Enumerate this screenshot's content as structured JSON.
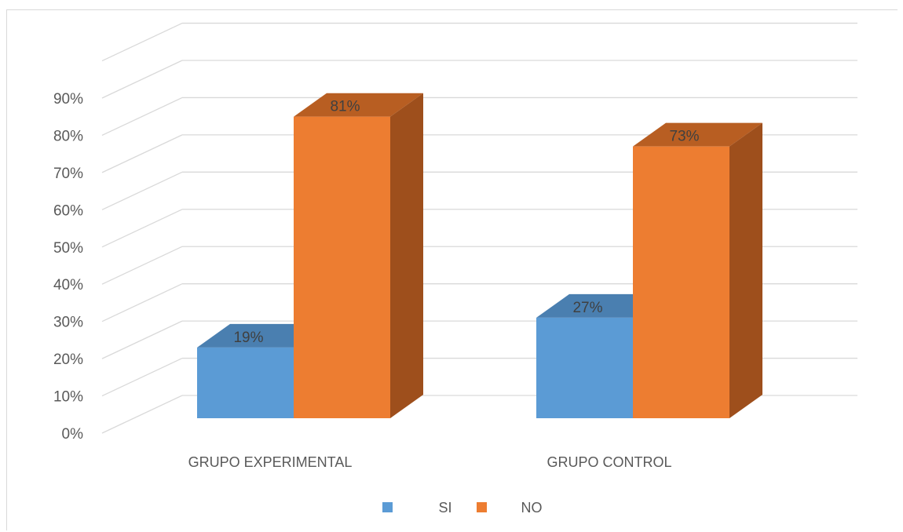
{
  "chart_data": {
    "type": "bar",
    "categories": [
      "GRUPO EXPERIMENTAL",
      "GRUPO CONTROL"
    ],
    "series": [
      {
        "name": "SI",
        "values": [
          19,
          27
        ],
        "labels": [
          "19%",
          "27%"
        ],
        "color": "#5b9bd5",
        "side_color": "#41719c",
        "top_color": "#4a7fb0"
      },
      {
        "name": "NO",
        "values": [
          81,
          73
        ],
        "labels": [
          "81%",
          "73%"
        ],
        "color": "#ed7d31",
        "side_color": "#9e4f1c",
        "top_color": "#b85e22"
      }
    ],
    "ylim": [
      0,
      90
    ],
    "yticks": [
      "0%",
      "10%",
      "20%",
      "30%",
      "40%",
      "50%",
      "60%",
      "70%",
      "80%",
      "90%"
    ],
    "grid": true,
    "legend": "bottom",
    "style": "3d-clustered-column"
  }
}
